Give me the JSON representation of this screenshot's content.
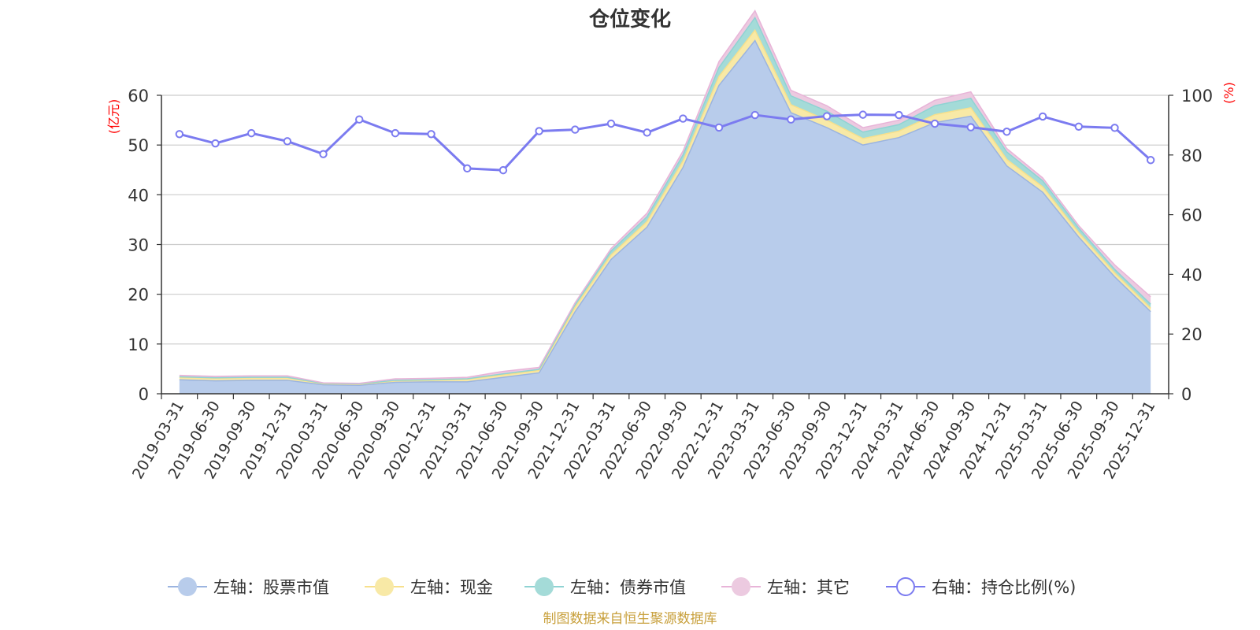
{
  "chart_data": {
    "type": "area",
    "title": "仓位变化",
    "left_axis_unit": "(亿元)",
    "right_axis_unit": "(%)",
    "left_ylim": [
      0,
      60
    ],
    "left_yticks": [
      0,
      10,
      20,
      30,
      40,
      50,
      60
    ],
    "right_ylim": [
      0,
      100
    ],
    "right_yticks": [
      0,
      20,
      40,
      60,
      80,
      100
    ],
    "grid": true,
    "legend_position": "bottom",
    "categories": [
      "2019-03-31",
      "2019-06-30",
      "2019-09-30",
      "2019-12-31",
      "2020-03-31",
      "2020-06-30",
      "2020-09-30",
      "2020-12-31",
      "2021-03-31",
      "2021-06-30",
      "2021-09-30",
      "2021-12-31",
      "2022-03-31",
      "2022-06-30",
      "2022-09-30",
      "2022-12-31",
      "2023-03-31",
      "2023-06-30",
      "2023-09-30",
      "2023-12-31",
      "2024-03-31",
      "2024-06-30",
      "2024-09-30",
      "2024-12-31",
      "2025-03-31",
      "2025-06-30",
      "2025-09-30",
      "2025-12-31"
    ],
    "series": [
      {
        "name": "左轴：股票市值",
        "axis": "left",
        "stacked": true,
        "color": "#9bb4e0",
        "fill": "#b8cceb",
        "values": [
          2.8,
          2.6,
          2.7,
          2.7,
          1.8,
          1.7,
          2.3,
          2.4,
          2.4,
          3.3,
          4.2,
          16.5,
          27.0,
          33.5,
          45.5,
          62.0,
          71.0,
          56.5,
          53.5,
          50.0,
          51.5,
          54.5,
          55.8,
          45.8,
          40.5,
          31.5,
          23.5,
          16.5
        ]
      },
      {
        "name": "左轴：现金",
        "axis": "left",
        "stacked": true,
        "color": "#f7e08c",
        "fill": "#f8e9a6",
        "values": [
          0.5,
          0.5,
          0.5,
          0.5,
          0.2,
          0.2,
          0.3,
          0.3,
          0.5,
          0.5,
          0.5,
          0.9,
          0.9,
          1.1,
          1.3,
          1.8,
          2.1,
          1.6,
          1.5,
          1.3,
          1.3,
          1.6,
          1.7,
          1.3,
          1.1,
          0.9,
          0.8,
          0.7
        ]
      },
      {
        "name": "左轴：债券市值",
        "axis": "left",
        "stacked": true,
        "color": "#8fd3d3",
        "fill": "#a4dbd8",
        "values": [
          0.1,
          0.1,
          0.1,
          0.1,
          0.1,
          0.1,
          0.1,
          0.1,
          0.1,
          0.2,
          0.2,
          0.5,
          0.8,
          1.0,
          1.2,
          1.8,
          2.5,
          1.8,
          1.8,
          1.3,
          1.3,
          1.8,
          1.9,
          1.5,
          1.2,
          0.9,
          0.7,
          0.8
        ]
      },
      {
        "name": "左轴：其它",
        "axis": "left",
        "stacked": true,
        "color": "#e8b4d8",
        "fill": "#eccae0",
        "values": [
          0.3,
          0.3,
          0.3,
          0.3,
          0.1,
          0.1,
          0.3,
          0.3,
          0.3,
          0.5,
          0.4,
          0.4,
          0.5,
          0.7,
          0.8,
          1.2,
          1.4,
          1.1,
          1.1,
          0.9,
          0.9,
          1.1,
          1.3,
          0.7,
          0.6,
          0.5,
          0.9,
          1.5
        ]
      },
      {
        "name": "右轴：持仓比例(%)",
        "axis": "right",
        "type": "line",
        "color": "#7b7bf0",
        "values": [
          87.0,
          83.9,
          87.3,
          84.6,
          80.3,
          91.9,
          87.3,
          87.0,
          75.5,
          74.9,
          88.0,
          88.5,
          90.5,
          87.5,
          92.2,
          89.2,
          93.4,
          91.9,
          93.0,
          93.5,
          93.4,
          90.5,
          89.3,
          87.8,
          92.9,
          89.5,
          89.1,
          78.3
        ]
      }
    ]
  },
  "source_note": "制图数据来自恒生聚源数据库"
}
